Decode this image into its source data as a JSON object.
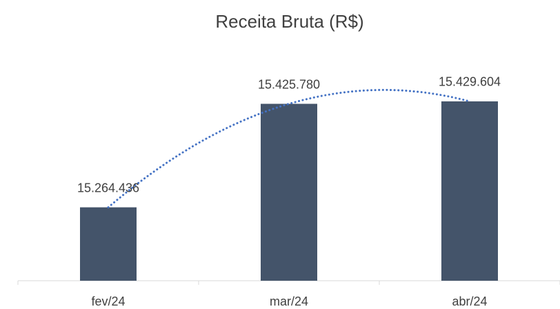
{
  "chart_data": {
    "type": "bar",
    "title": "Receita Bruta (R$)",
    "categories": [
      "fev/24",
      "mar/24",
      "abr/24"
    ],
    "values": [
      15264436,
      15425780,
      15429604
    ],
    "value_labels": [
      "15.264.436",
      "15.425.780",
      "15.429.604"
    ],
    "color": "#44546a",
    "ylim": [
      15150000,
      15450000
    ],
    "trendline": {
      "type": "polynomial",
      "color": "#4472c4"
    }
  }
}
